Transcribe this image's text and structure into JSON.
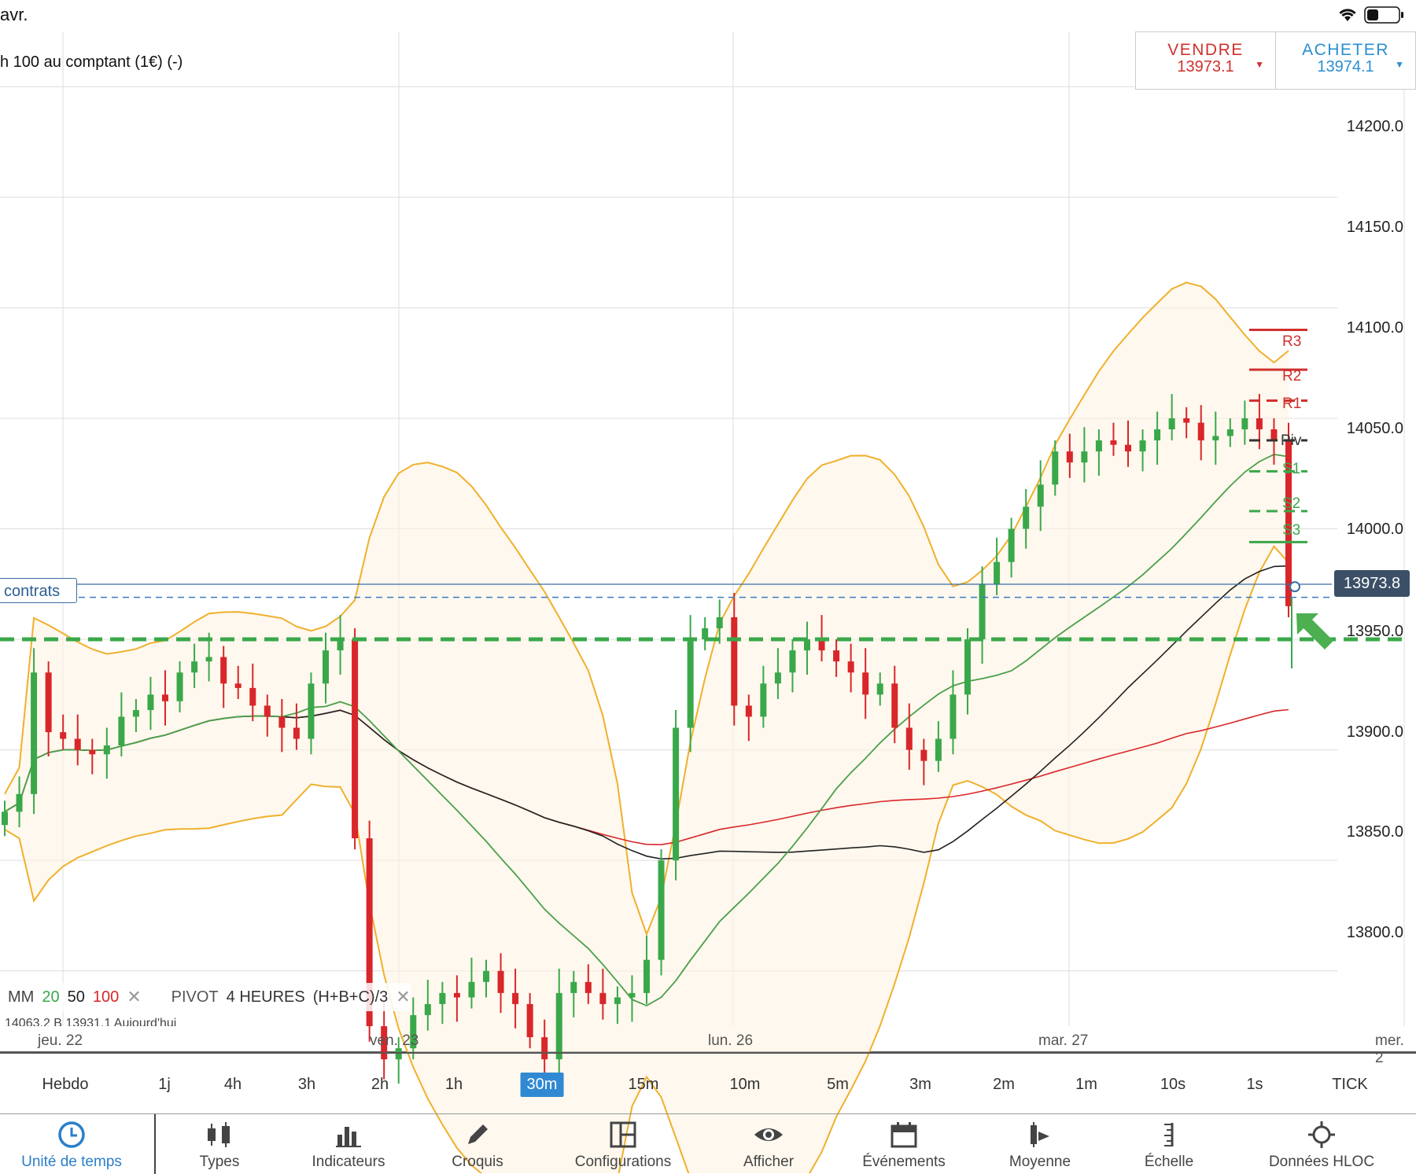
{
  "status_bar": {
    "time_fragment": "avr."
  },
  "instrument": {
    "name": "h 100 au comptant (1€) (-)"
  },
  "trade": {
    "sell_label": "VENDRE",
    "sell_price": "13973.1",
    "buy_label": "ACHETER",
    "buy_price": "13974.1"
  },
  "price_axis": [
    "14200.0",
    "14150.0",
    "14100.0",
    "14050.0",
    "14000.0",
    "13950.0",
    "13900.0",
    "13850.0",
    "13800.0"
  ],
  "current_price": "13973.8",
  "position_tag": "contrats",
  "pivots": [
    {
      "label": "R3",
      "value": 14090,
      "color": "#d0312d"
    },
    {
      "label": "R2",
      "value": 14072,
      "color": "#d0312d"
    },
    {
      "label": "R1",
      "value": 14058,
      "color": "#d0312d"
    },
    {
      "label": "Piv",
      "value": 14040,
      "color": "#333333"
    },
    {
      "label": "S1",
      "value": 14026,
      "color": "#3aa84a"
    },
    {
      "label": "S2",
      "value": 14008,
      "color": "#3aa84a"
    },
    {
      "label": "S3",
      "value": 13994,
      "color": "#3aa84a"
    }
  ],
  "dates": [
    "jeu. 22",
    "ven. 23",
    "lun. 26",
    "mar. 27",
    "mer. 2"
  ],
  "legend": {
    "mm_label": "MM",
    "mm20": "20",
    "mm50": "50",
    "mm100": "100",
    "pivot_label": "PIVOT",
    "pivot_period": "4 HEURES",
    "pivot_formula": "(H+B+C)/3",
    "close": "✕",
    "ohlc": "14063.2   B 13931.1   Aujourd'hui"
  },
  "timeframes": [
    {
      "label": "Hebdo"
    },
    {
      "label": "1j"
    },
    {
      "label": "4h"
    },
    {
      "label": "3h"
    },
    {
      "label": "2h"
    },
    {
      "label": "1h"
    },
    {
      "label": "30m"
    },
    {
      "label": "15m"
    },
    {
      "label": "10m"
    },
    {
      "label": "5m"
    },
    {
      "label": "3m"
    },
    {
      "label": "2m"
    },
    {
      "label": "1m"
    },
    {
      "label": "10s"
    },
    {
      "label": "1s"
    },
    {
      "label": "TICK"
    }
  ],
  "active_timeframe": "30m",
  "toolbar": [
    {
      "label": "Unité de temps",
      "icon": "clock-icon"
    },
    {
      "label": "Types",
      "icon": "candles-icon"
    },
    {
      "label": "Indicateurs",
      "icon": "bars-icon"
    },
    {
      "label": "Croquis",
      "icon": "pencil-icon"
    },
    {
      "label": "Configurations",
      "icon": "layout-icon"
    },
    {
      "label": "Afficher",
      "icon": "eye-icon"
    },
    {
      "label": "Événements",
      "icon": "calendar-icon"
    },
    {
      "label": "Moyenne",
      "icon": "average-icon"
    },
    {
      "label": "Échelle",
      "icon": "scale-icon"
    },
    {
      "label": "Données HLOC",
      "icon": "crosshair-icon"
    }
  ],
  "colors": {
    "up": "#3aa84a",
    "down": "#d9262a",
    "bollinger": "#f0b02c",
    "mm20": "#4aa04a",
    "mm50": "#222222",
    "mm100": "#d9262a",
    "accent": "#3089d3"
  },
  "chart_data": {
    "type": "candlestick",
    "timeframe": "30m",
    "ylim": [
      13775,
      14225
    ],
    "support_level": 13950,
    "position_level": 13969,
    "current_price": 13973.8,
    "sessions": [
      "jeu. 22",
      "ven. 23",
      "lun. 26",
      "mar. 27"
    ],
    "closes": [
      13872,
      13880,
      13935,
      13908,
      13905,
      13900,
      13898,
      13902,
      13915,
      13918,
      13925,
      13922,
      13935,
      13940,
      13942,
      13930,
      13928,
      13920,
      13915,
      13910,
      13905,
      13930,
      13945,
      13950,
      13860,
      13775,
      13760,
      13765,
      13780,
      13785,
      13790,
      13788,
      13795,
      13800,
      13790,
      13785,
      13770,
      13760,
      13790,
      13795,
      13790,
      13785,
      13788,
      13790,
      13805,
      13850,
      13910,
      13950,
      13955,
      13960,
      13920,
      13915,
      13930,
      13935,
      13945,
      13950,
      13945,
      13940,
      13935,
      13925,
      13930,
      13910,
      13900,
      13895,
      13905,
      13925,
      13950,
      13975,
      13985,
      14000,
      14010,
      14020,
      14035,
      14030,
      14035,
      14040,
      14038,
      14035,
      14040,
      14045,
      14050,
      14048,
      14040,
      14042,
      14045,
      14050,
      14045,
      14040,
      13965
    ]
  }
}
